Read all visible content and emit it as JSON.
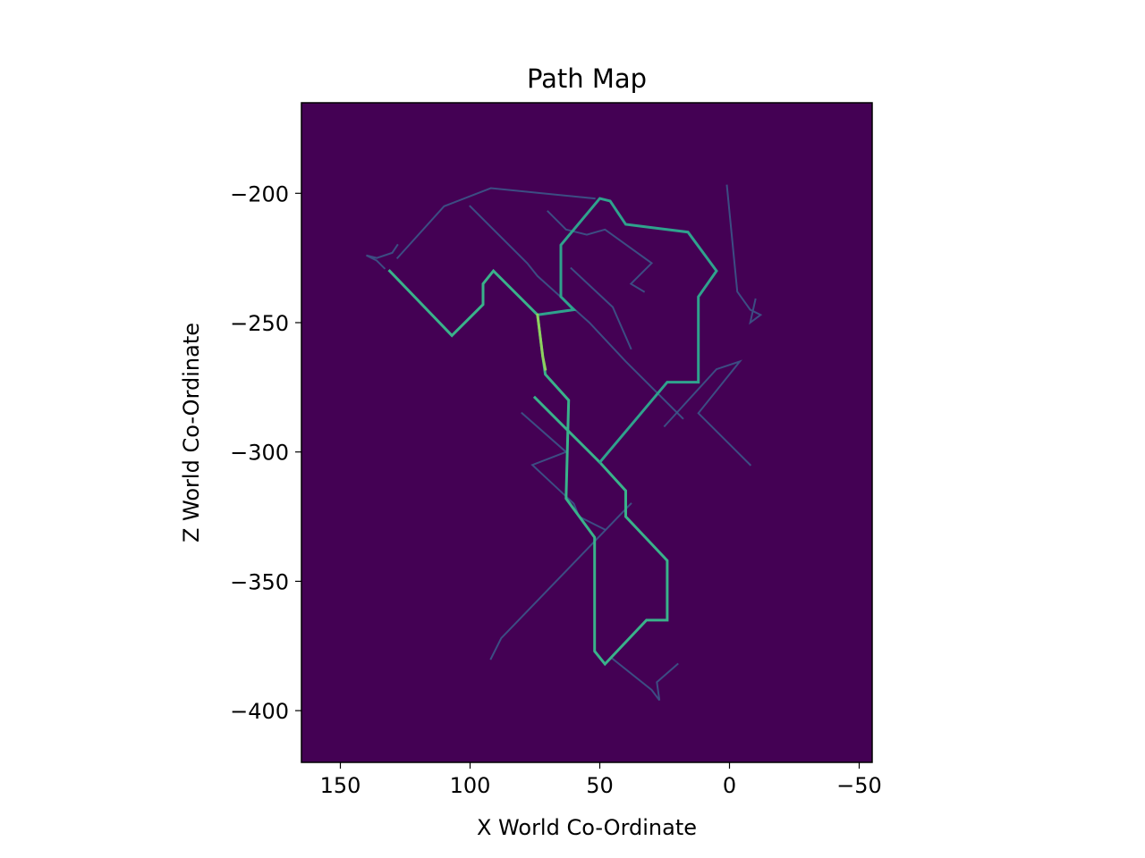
{
  "chart_data": {
    "type": "heatmap",
    "title": "Path Map",
    "xlabel": "X World Co-Ordinate",
    "ylabel": "Z World Co-Ordinate",
    "xlim": [
      165,
      -55
    ],
    "ylim": [
      -420,
      -165
    ],
    "x_ticks": [
      150,
      100,
      50,
      0,
      -50
    ],
    "x_tick_labels": [
      "150",
      "100",
      "50",
      "0",
      "−50"
    ],
    "y_ticks": [
      -200,
      -250,
      -300,
      -350,
      -400
    ],
    "y_tick_labels": [
      "−200",
      "−250",
      "−300",
      "−350",
      "−400"
    ],
    "grid": false,
    "colormap": "viridis",
    "background_color": "#440154",
    "series": [
      {
        "intensity": "high",
        "color": "#39b28a",
        "points": [
          [
            131,
            -230
          ],
          [
            107,
            -255
          ],
          [
            95,
            -243
          ],
          [
            95,
            -235
          ],
          [
            91,
            -230
          ],
          [
            74,
            -247
          ],
          [
            73,
            -255
          ],
          [
            72,
            -263
          ],
          [
            71,
            -270
          ],
          [
            62,
            -280
          ],
          [
            63,
            -318
          ],
          [
            52,
            -333
          ],
          [
            52,
            -377
          ],
          [
            48,
            -382
          ],
          [
            32,
            -365
          ],
          [
            24,
            -365
          ],
          [
            24,
            -342
          ],
          [
            40,
            -325
          ],
          [
            40,
            -315
          ],
          [
            50,
            -304
          ],
          [
            75,
            -279
          ]
        ]
      },
      {
        "intensity": "high",
        "color": "#2fa28d",
        "points": [
          [
            50,
            -304
          ],
          [
            24,
            -273
          ],
          [
            12,
            -273
          ],
          [
            12,
            -240
          ],
          [
            5,
            -230
          ],
          [
            16,
            -215
          ],
          [
            40,
            -212
          ],
          [
            46,
            -203
          ],
          [
            50,
            -202
          ],
          [
            65,
            -220
          ],
          [
            65,
            -240
          ],
          [
            60,
            -245
          ],
          [
            74,
            -247
          ]
        ]
      },
      {
        "intensity": "peak",
        "color": "#8fd05e",
        "points": [
          [
            74,
            -247
          ],
          [
            73,
            -255
          ],
          [
            72,
            -263
          ],
          [
            71,
            -268
          ]
        ]
      },
      {
        "intensity": "low",
        "color": "#3b5a8c",
        "points": [
          [
            100,
            -205
          ],
          [
            78,
            -227
          ],
          [
            74,
            -232
          ],
          [
            54,
            -250
          ],
          [
            40,
            -265
          ],
          [
            18,
            -287
          ]
        ]
      },
      {
        "intensity": "low",
        "color": "#3b5a8c",
        "points": [
          [
            1,
            -197
          ],
          [
            -3,
            -238
          ],
          [
            -8,
            -245
          ],
          [
            -12,
            -247
          ],
          [
            -8,
            -250
          ],
          [
            -10,
            -241
          ]
        ]
      },
      {
        "intensity": "low",
        "color": "#3b5a8c",
        "points": [
          [
            80,
            -285
          ],
          [
            63,
            -300
          ],
          [
            76,
            -305
          ],
          [
            60,
            -320
          ],
          [
            58,
            -325
          ],
          [
            48,
            -330
          ]
        ]
      },
      {
        "intensity": "low",
        "color": "#3b5a8c",
        "points": [
          [
            38,
            -320
          ],
          [
            88,
            -372
          ],
          [
            92,
            -380
          ]
        ]
      },
      {
        "intensity": "low",
        "color": "#3b5a8c",
        "points": [
          [
            45,
            -380
          ],
          [
            30,
            -392
          ],
          [
            27,
            -396
          ],
          [
            28,
            -389
          ],
          [
            20,
            -382
          ]
        ]
      },
      {
        "intensity": "low",
        "color": "#3b5a8c",
        "points": [
          [
            25,
            -290
          ],
          [
            5,
            -268
          ],
          [
            -4,
            -265
          ],
          [
            12,
            -285
          ],
          [
            -8,
            -305
          ]
        ]
      },
      {
        "intensity": "low",
        "color": "#3b5a8c",
        "points": [
          [
            133,
            -229
          ],
          [
            136,
            -226
          ],
          [
            140,
            -224
          ],
          [
            136,
            -225
          ],
          [
            130,
            -223
          ],
          [
            128,
            -220
          ]
        ]
      },
      {
        "intensity": "low",
        "color": "#3b5a8c",
        "points": [
          [
            70,
            -207
          ],
          [
            63,
            -214
          ],
          [
            55,
            -216
          ],
          [
            48,
            -214
          ],
          [
            30,
            -227
          ],
          [
            38,
            -235
          ],
          [
            33,
            -238
          ]
        ]
      },
      {
        "intensity": "low",
        "color": "#3b5a8c",
        "points": [
          [
            52,
            -202
          ],
          [
            92,
            -198
          ],
          [
            110,
            -205
          ],
          [
            128,
            -225
          ]
        ]
      },
      {
        "intensity": "low",
        "color": "#3b5a8c",
        "points": [
          [
            61,
            -229
          ],
          [
            45,
            -244
          ],
          [
            38,
            -260
          ]
        ]
      }
    ]
  }
}
